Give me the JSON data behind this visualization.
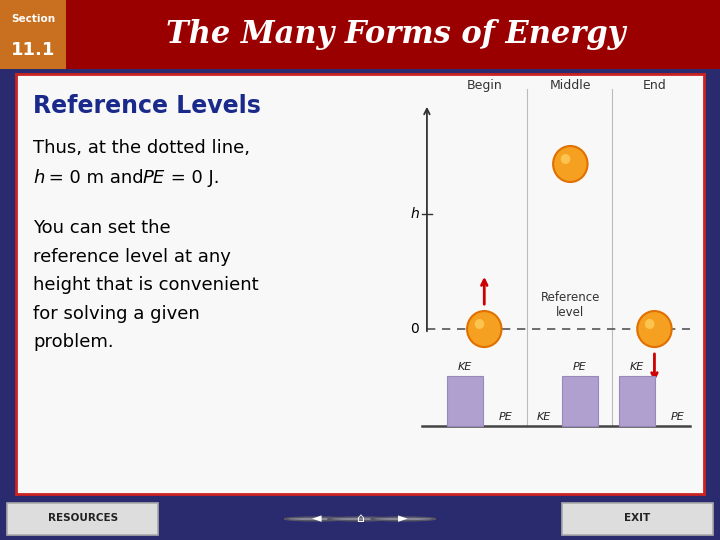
{
  "title_section": "Section",
  "title_number": "11.1",
  "title_main": "The Many Forms of Energy",
  "header_bg": "#9b0000",
  "section_box_bg": "#c87020",
  "body_bg": "#f8f8f8",
  "outer_bg": "#2a2a6e",
  "card_border": "#cc2222",
  "subtitle": "Reference Levels",
  "subtitle_color": "#1a2a8a",
  "text1_line1": "Thus, at the dotted line,",
  "text2": "You can set the\nreference level at any\nheight that is convenient\nfor solving a given\nproblem.",
  "diagram_labels_top": [
    "Begin",
    "Middle",
    "End"
  ],
  "diagram_ref_label1": "Reference",
  "diagram_ref_label2": "level",
  "ball_color": "#f5a020",
  "ball_edge": "#e07000",
  "ball_highlight": "#ffd060",
  "bar_color": "#b0a0d0",
  "bar_edge": "#9988bb",
  "arrow_color": "#cc0000",
  "dashed_color": "#555555",
  "axis_color": "#333333",
  "divider_color": "#bbbbbb",
  "ground_color": "#444444",
  "resources_label": "RESOURCES",
  "exit_label": "EXIT",
  "nav_color": "#dddddd",
  "nav_edge": "#aaaaaa"
}
